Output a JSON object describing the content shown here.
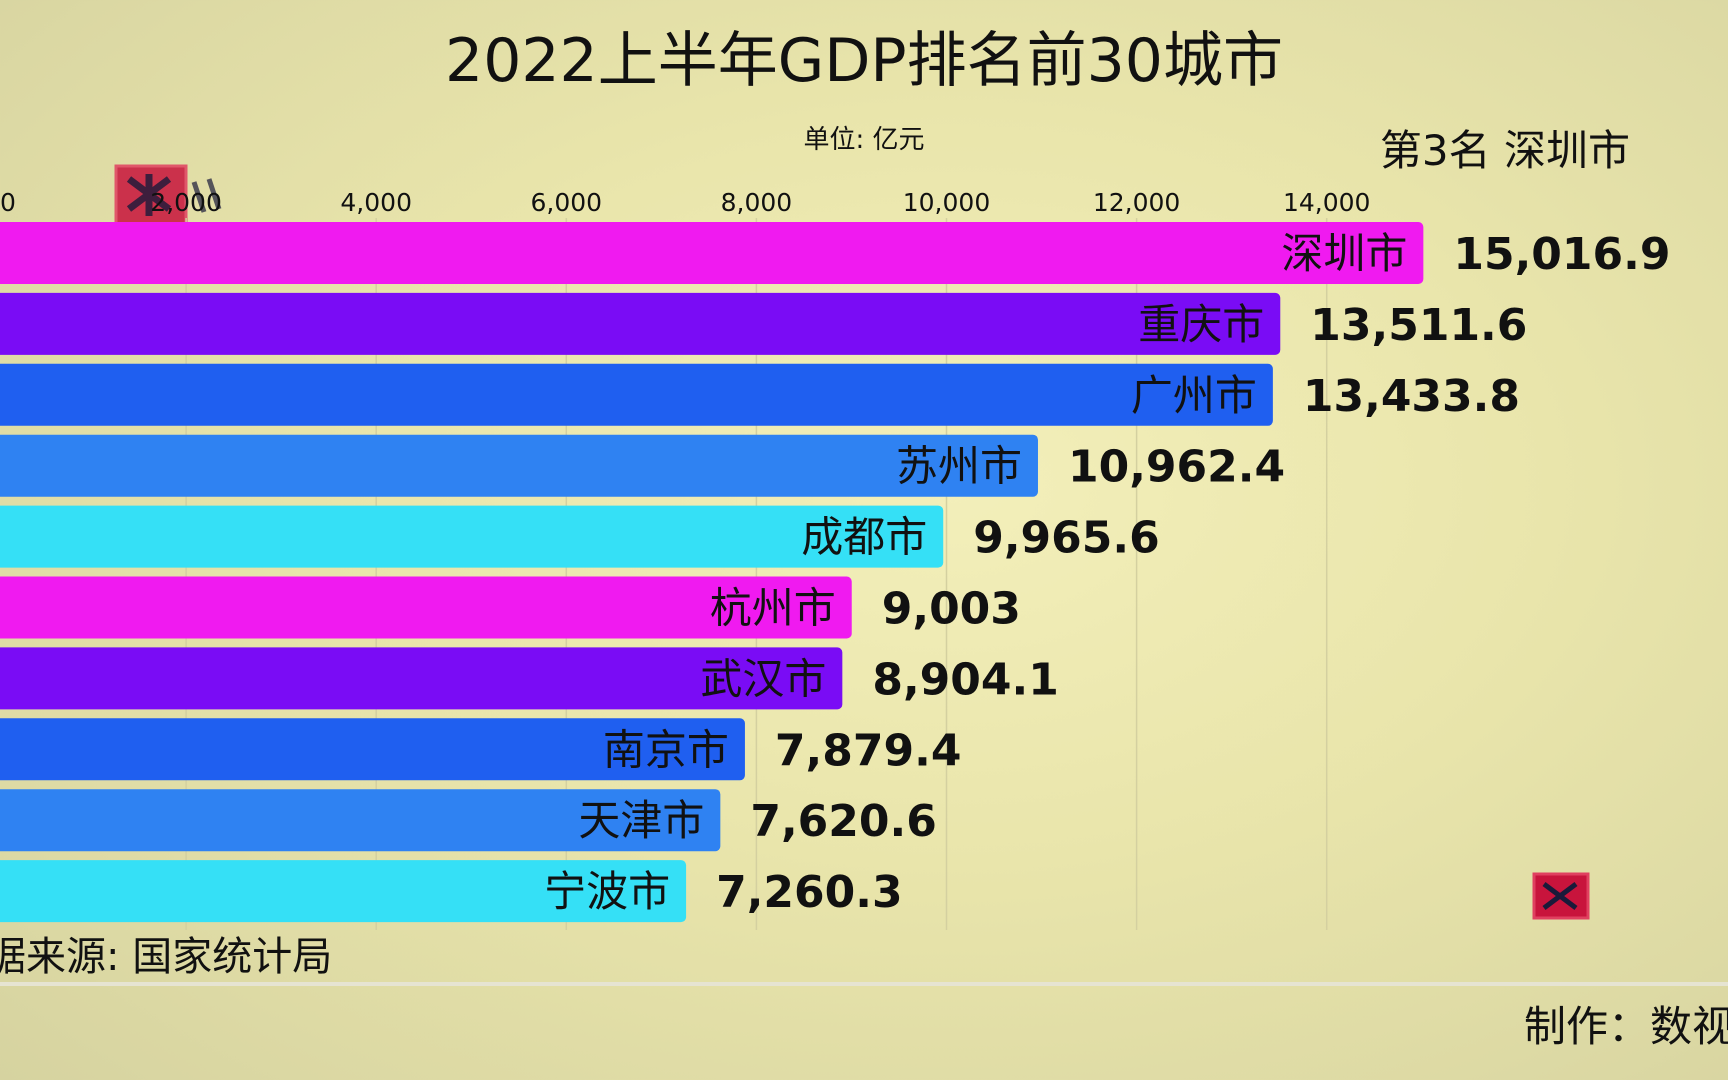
{
  "title": "2022上半年GDP排名前30城市",
  "unit": "单位: 亿元",
  "rank_label": "第3名 深圳市",
  "source": "据来源: 国家统计局",
  "maker": "制作：数视",
  "watermark": "数视君",
  "chart_data": {
    "type": "bar",
    "orientation": "horizontal",
    "title": "2022上半年GDP排名前30城市",
    "xlabel": "单位: 亿元",
    "xlim": [
      0,
      15500
    ],
    "ticks": [
      0,
      2000,
      4000,
      6000,
      8000,
      10000,
      12000,
      14000
    ],
    "tick_labels": [
      "0",
      "2,000",
      "4,000",
      "6,000",
      "8,000",
      "10,000",
      "12,000",
      "14,000"
    ],
    "grid": true,
    "categories": [
      "深圳市",
      "重庆市",
      "广州市",
      "苏州市",
      "成都市",
      "杭州市",
      "武汉市",
      "南京市",
      "天津市",
      "宁波市"
    ],
    "values": [
      15016.9,
      13511.6,
      13433.8,
      10962.4,
      9965.6,
      9003,
      8904.1,
      7879.4,
      7620.6,
      7260.3
    ],
    "value_labels": [
      "15,016.9",
      "13,511.6",
      "13,433.8",
      "10,962.4",
      "9,965.6",
      "9,003",
      "8,904.1",
      "7,879.4",
      "7,620.6",
      "7,260.3"
    ],
    "colors": [
      "#f01af0",
      "#7a0cf5",
      "#1f5ff0",
      "#2f82f2",
      "#35e0f6",
      "#f01af0",
      "#7a0cf5",
      "#1f5ff0",
      "#2f82f2",
      "#35e0f6"
    ]
  }
}
